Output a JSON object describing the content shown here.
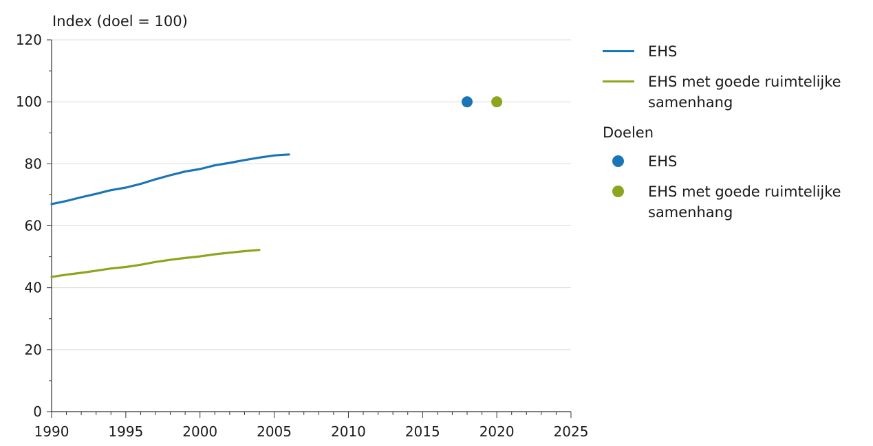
{
  "chart_data": {
    "type": "line",
    "ylabel": "Index (doel = 100)",
    "xlim": [
      1990,
      2025
    ],
    "ylim": [
      0,
      120
    ],
    "xticks": [
      1990,
      1995,
      2000,
      2005,
      2010,
      2015,
      2020,
      2025
    ],
    "yticks": [
      0,
      20,
      40,
      60,
      80,
      100,
      120
    ],
    "grid": "horizontal",
    "legend_position": "right",
    "series": [
      {
        "name": "EHS",
        "color": "#1a75b8",
        "x": [
          1990,
          1991,
          1992,
          1993,
          1994,
          1995,
          1996,
          1997,
          1998,
          1999,
          2000,
          2001,
          2002,
          2003,
          2004,
          2005,
          2006
        ],
        "y": [
          67,
          68,
          69.2,
          70.3,
          71.5,
          72.3,
          73.5,
          75,
          76.3,
          77.5,
          78.3,
          79.5,
          80.3,
          81.2,
          82,
          82.7,
          83
        ]
      },
      {
        "name": "EHS met goede ruimtelijke samenhang",
        "color": "#8ba61c",
        "x": [
          1990,
          1991,
          1992,
          1993,
          1994,
          1995,
          1996,
          1997,
          1998,
          1999,
          2000,
          2001,
          2002,
          2003,
          2004
        ],
        "y": [
          43.5,
          44.2,
          44.8,
          45.5,
          46.2,
          46.7,
          47.4,
          48.3,
          49,
          49.6,
          50.1,
          50.8,
          51.3,
          51.8,
          52.2
        ]
      }
    ],
    "targets": {
      "title": "Doelen",
      "points": [
        {
          "name": "EHS",
          "x": 2018,
          "y": 100,
          "color": "#1a75b8"
        },
        {
          "name": "EHS met goede ruimtelijke samenhang",
          "x": 2020,
          "y": 100,
          "color": "#8ba61c"
        }
      ]
    }
  }
}
